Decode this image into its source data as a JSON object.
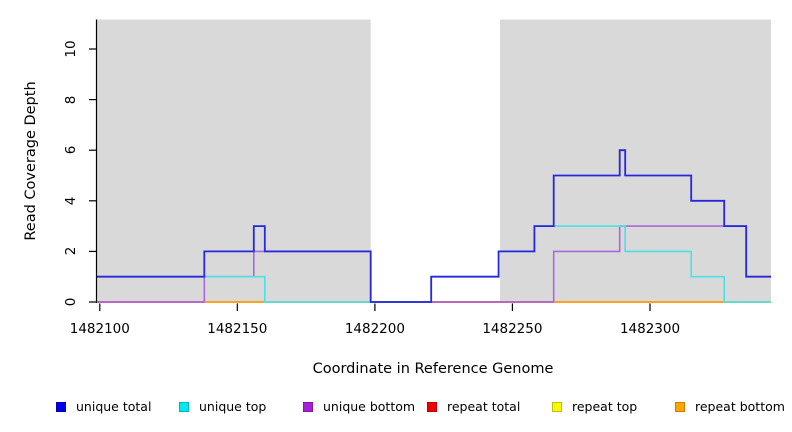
{
  "figure": {
    "background_color": "#ffffff",
    "plot_band_color": "#d9d9d9"
  },
  "chart_data": {
    "type": "line",
    "subtype": "step-coverage",
    "title": "",
    "xlabel": "Coordinate in Reference Genome",
    "ylabel": "Read Coverage Depth",
    "x_range": [
      1482099,
      1482344
    ],
    "y_range": [
      0,
      11.15
    ],
    "x_ticks": [
      1482100,
      1482150,
      1482200,
      1482250,
      1482300
    ],
    "y_ticks": [
      0,
      2,
      4,
      6,
      8,
      10
    ],
    "grid": false,
    "legend_position": "bottom",
    "shaded_regions": [
      {
        "x0": 1482099,
        "x1": 1482198.5,
        "color": "#d9d9d9"
      },
      {
        "x0": 1482245.5,
        "x1": 1482344,
        "color": "#d9d9d9"
      }
    ],
    "series": [
      {
        "name": "repeat total",
        "color": "#e00000",
        "line_width": 1.4,
        "step_points": [
          [
            1482099,
            0
          ],
          [
            1482344,
            0
          ]
        ]
      },
      {
        "name": "repeat top",
        "color": "#f0f000",
        "line_width": 1.4,
        "step_points": [
          [
            1482099,
            0
          ],
          [
            1482344,
            0
          ]
        ]
      },
      {
        "name": "repeat bottom",
        "color": "#ffa500",
        "line_width": 1.4,
        "step_points": [
          [
            1482099,
            0
          ],
          [
            1482344,
            0
          ]
        ]
      },
      {
        "name": "unique bottom",
        "color": "#a76ad9",
        "line_width": 1.6,
        "step_points": [
          [
            1482099,
            0
          ],
          [
            1482138,
            1
          ],
          [
            1482156,
            2
          ],
          [
            1482198.5,
            0
          ],
          [
            1482265,
            2
          ],
          [
            1482289,
            3
          ],
          [
            1482335,
            1
          ],
          [
            1482344,
            1
          ]
        ]
      },
      {
        "name": "unique top",
        "color": "#4de0e8",
        "line_width": 1.6,
        "step_points": [
          [
            1482099,
            1
          ],
          [
            1482160,
            0
          ],
          [
            1482220.5,
            1
          ],
          [
            1482245,
            2
          ],
          [
            1482258,
            3
          ],
          [
            1482291,
            2
          ],
          [
            1482315,
            1
          ],
          [
            1482327,
            0
          ],
          [
            1482344,
            0
          ]
        ]
      },
      {
        "name": "unique total",
        "color": "#2727dc",
        "line_width": 1.8,
        "step_points": [
          [
            1482099,
            1
          ],
          [
            1482138,
            2
          ],
          [
            1482156,
            3
          ],
          [
            1482160,
            2
          ],
          [
            1482198.5,
            0
          ],
          [
            1482220.5,
            1
          ],
          [
            1482245,
            2
          ],
          [
            1482258,
            3
          ],
          [
            1482265,
            5
          ],
          [
            1482289,
            6
          ],
          [
            1482291,
            5
          ],
          [
            1482315,
            4
          ],
          [
            1482327,
            3
          ],
          [
            1482335,
            1
          ],
          [
            1482344,
            1
          ]
        ]
      }
    ],
    "baseline_overlap_segments": [
      {
        "x0": 1482099,
        "x1": 1482138,
        "color": "#e0569c",
        "note": "unique bottom + repeat lines at depth 0"
      },
      {
        "x0": 1482138,
        "x1": 1482160,
        "color": "#ffa126",
        "note": "repeat lines at depth 0"
      },
      {
        "x0": 1482160,
        "x1": 1482198.5,
        "color": "#9cd69e",
        "note": "unique top + repeat lines at depth 0"
      },
      {
        "x0": 1482220.5,
        "x1": 1482265,
        "color": "#e2566e",
        "note": "unique bottom + repeat lines at depth 0"
      },
      {
        "x0": 1482265,
        "x1": 1482327,
        "color": "#ffa126",
        "note": "repeat lines at depth 0"
      },
      {
        "x0": 1482327,
        "x1": 1482344,
        "color": "#9cd69e",
        "note": "unique top + repeat lines at depth 0"
      }
    ]
  },
  "legend": {
    "items": [
      {
        "label": "unique total",
        "color": "#0000e8"
      },
      {
        "label": "unique top",
        "color": "#00e8f0"
      },
      {
        "label": "unique bottom",
        "color": "#a81fd8"
      },
      {
        "label": "repeat total",
        "color": "#f00000"
      },
      {
        "label": "repeat top",
        "color": "#f8f800"
      },
      {
        "label": "repeat bottom",
        "color": "#ffa400"
      }
    ]
  }
}
